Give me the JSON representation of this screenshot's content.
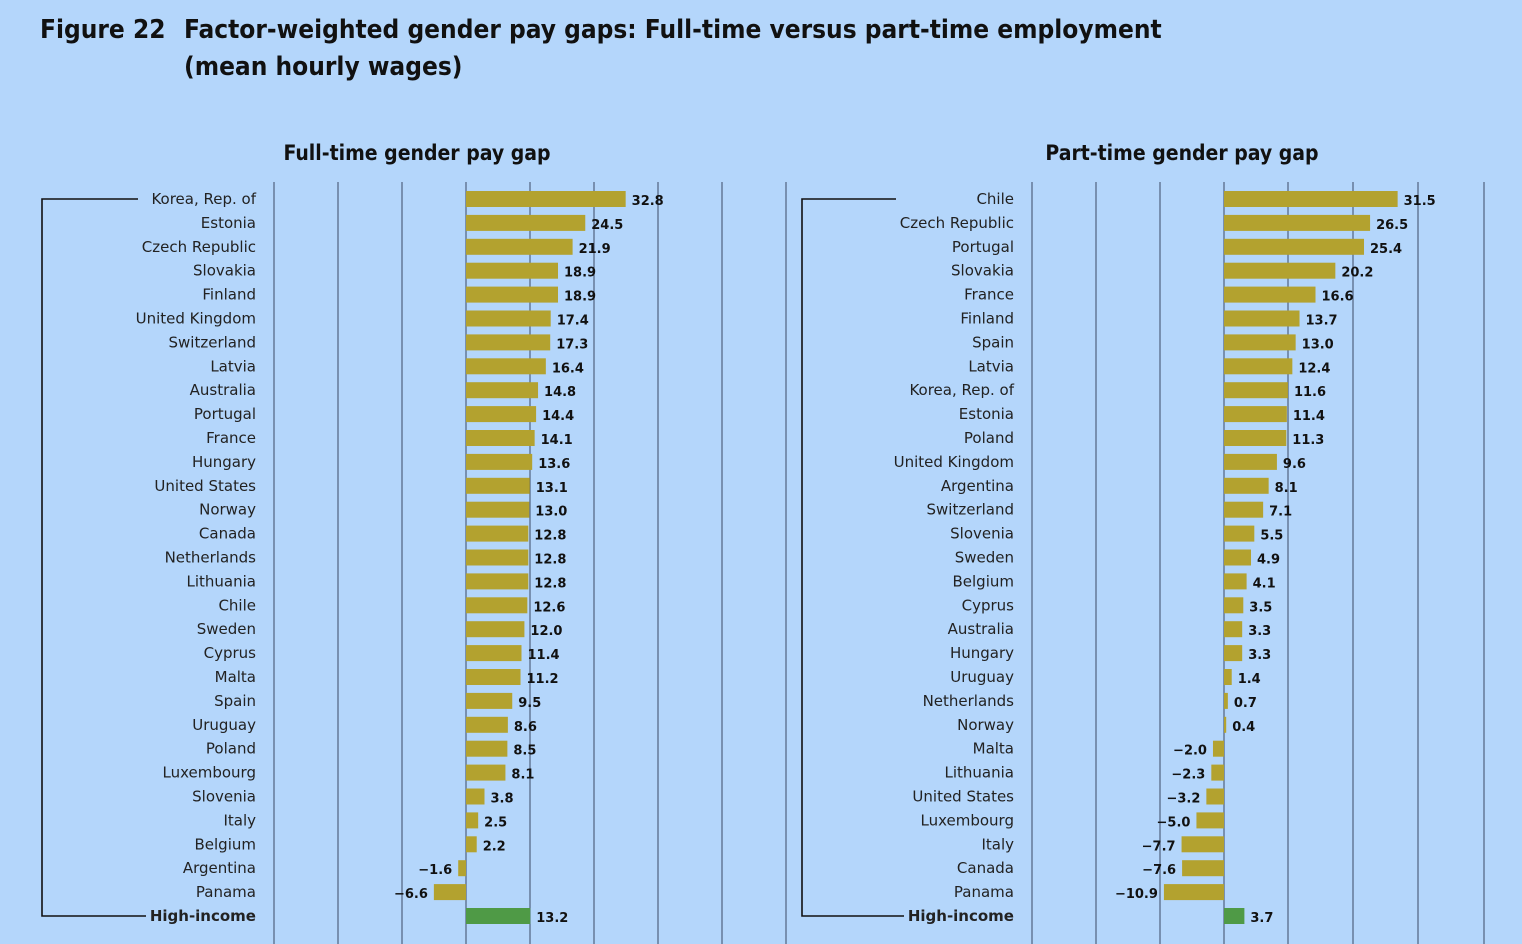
{
  "figure": {
    "number": "Figure 22",
    "title_line1": "Factor-weighted gender pay gaps: Full-time versus part-time employment",
    "title_line2": "(mean hourly wages)"
  },
  "colors": {
    "background": "#b4d6fb",
    "bar": "#b3a22f",
    "bar_high_income": "#4f9a46",
    "grid": "#3b4a66"
  },
  "chart_data": [
    {
      "type": "bar",
      "orientation": "horizontal",
      "title": "Full-time gender pay gap",
      "grid": true,
      "categories": [
        "Korea, Rep. of",
        "Estonia",
        "Czech Republic",
        "Slovakia",
        "Finland",
        "United Kingdom",
        "Switzerland",
        "Latvia",
        "Australia",
        "Portugal",
        "France",
        "Hungary",
        "United States",
        "Norway",
        "Canada",
        "Netherlands",
        "Lithuania",
        "Chile",
        "Sweden",
        "Cyprus",
        "Malta",
        "Spain",
        "Uruguay",
        "Poland",
        "Luxembourg",
        "Slovenia",
        "Italy",
        "Belgium",
        "Argentina",
        "Panama",
        "High-income"
      ],
      "values": [
        32.8,
        24.5,
        21.9,
        18.9,
        18.9,
        17.4,
        17.3,
        16.4,
        14.8,
        14.4,
        14.1,
        13.6,
        13.1,
        13.0,
        12.8,
        12.8,
        12.8,
        12.6,
        12.0,
        11.4,
        11.2,
        9.5,
        8.6,
        8.5,
        8.1,
        3.8,
        2.5,
        2.2,
        -1.6,
        -6.6,
        13.2
      ],
      "value_labels": [
        "32.8",
        "24.5",
        "21.9",
        "18.9",
        "18.9",
        "17.4",
        "17.3",
        "16.4",
        "14.8",
        "14.4",
        "14.1",
        "13.6",
        "13.1",
        "13.0",
        "12.8",
        "12.8",
        "12.8",
        "12.6",
        "12.0",
        "11.4",
        "11.2",
        "9.5",
        "8.6",
        "8.5",
        "8.1",
        "3.8",
        "2.5",
        "2.2",
        "−1.6",
        "−6.6",
        "13.2"
      ],
      "highlight": "High-income",
      "xlim": [
        -53,
        53
      ]
    },
    {
      "type": "bar",
      "orientation": "horizontal",
      "title": "Part-time gender pay gap",
      "grid": true,
      "categories": [
        "Chile",
        "Czech Republic",
        "Portugal",
        "Slovakia",
        "France",
        "Finland",
        "Spain",
        "Latvia",
        "Korea, Rep. of",
        "Estonia",
        "Poland",
        "United Kingdom",
        "Argentina",
        "Switzerland",
        "Slovenia",
        "Sweden",
        "Belgium",
        "Cyprus",
        "Australia",
        "Hungary",
        "Uruguay",
        "Netherlands",
        "Norway",
        "Malta",
        "Lithuania",
        "United States",
        "Luxembourg",
        "Italy",
        "Canada",
        "Panama",
        "High-income"
      ],
      "values": [
        31.5,
        26.5,
        25.4,
        20.2,
        16.6,
        13.7,
        13.0,
        12.4,
        11.6,
        11.4,
        11.3,
        9.6,
        8.1,
        7.1,
        5.5,
        4.9,
        4.1,
        3.5,
        3.3,
        3.3,
        1.4,
        0.7,
        0.4,
        -2.0,
        -2.3,
        -3.2,
        -5.0,
        -7.7,
        -7.6,
        -10.9,
        3.7
      ],
      "value_labels": [
        "31.5",
        "26.5",
        "25.4",
        "20.2",
        "16.6",
        "13.7",
        "13.0",
        "12.4",
        "11.6",
        "11.4",
        "11.3",
        "9.6",
        "8.1",
        "7.1",
        "5.5",
        "4.9",
        "4.1",
        "3.5",
        "3.3",
        "3.3",
        "1.4",
        "0.7",
        "0.4",
        "−2.0",
        "−2.3",
        "−3.2",
        "−5.0",
        "−7.7",
        "−7.6",
        "−10.9",
        "3.7"
      ],
      "highlight": "High-income",
      "xlim": [
        -16,
        66
      ]
    }
  ]
}
